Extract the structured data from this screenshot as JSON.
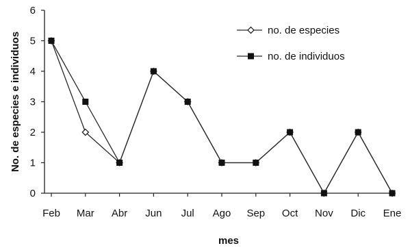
{
  "chart_data": {
    "type": "line",
    "xlabel": "mes",
    "ylabel": "No. de especies e individuos",
    "categories": [
      "Feb",
      "Mar",
      "Abr",
      "Jun",
      "Jul",
      "Ago",
      "Sep",
      "Oct",
      "Nov",
      "Dic",
      "Ene"
    ],
    "ylim": [
      0,
      6
    ],
    "yticks": [
      0,
      1,
      2,
      3,
      4,
      5,
      6
    ],
    "grid": false,
    "legend_position": "top-right",
    "series": [
      {
        "name": "no. de especies",
        "marker": "open-diamond",
        "values": [
          5,
          2,
          1,
          4,
          3,
          1,
          1,
          2,
          0,
          2,
          0
        ]
      },
      {
        "name": "no. de individuos",
        "marker": "filled-square",
        "values": [
          5,
          3,
          1,
          4,
          3,
          1,
          1,
          2,
          0,
          2,
          0
        ]
      }
    ],
    "colors": {
      "line": "#2a2a2a",
      "axis": "#222222",
      "marker_fill": "#111111"
    }
  }
}
